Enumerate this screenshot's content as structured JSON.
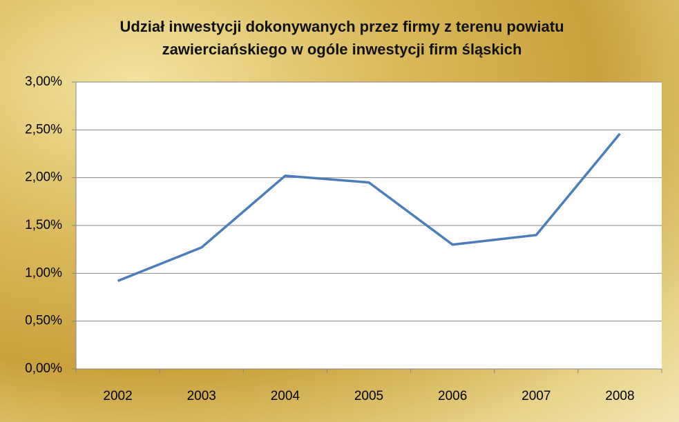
{
  "chart_data": {
    "type": "line",
    "title": "Udział inwestycji dokonywanych przez firmy z terenu powiatu zawierciańskiego w ogóle inwestycji firm śląskich",
    "categories": [
      "2002",
      "2003",
      "2004",
      "2005",
      "2006",
      "2007",
      "2008"
    ],
    "series": [
      {
        "color": "#4a7ebb",
        "values": [
          0.92,
          1.27,
          2.02,
          1.95,
          1.3,
          1.4,
          2.46
        ]
      }
    ],
    "ylim": [
      0,
      3
    ],
    "yticks": [
      {
        "value": 0,
        "label": "0,00%"
      },
      {
        "value": 0.5,
        "label": "0,50%"
      },
      {
        "value": 1,
        "label": "1,00%"
      },
      {
        "value": 1.5,
        "label": "1,50%"
      },
      {
        "value": 2,
        "label": "2,00%"
      },
      {
        "value": 2.5,
        "label": "2,50%"
      },
      {
        "value": 3,
        "label": "3,00%"
      }
    ],
    "grid": true
  }
}
